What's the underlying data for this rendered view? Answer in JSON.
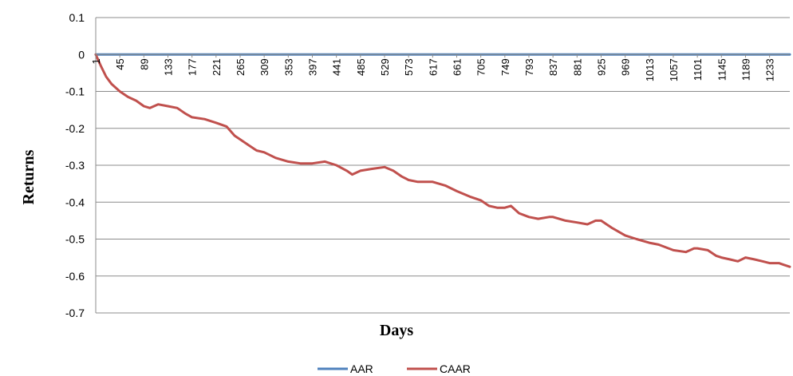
{
  "chart_data": {
    "type": "line",
    "title": "",
    "xlabel": "Days",
    "ylabel": "Returns",
    "ylim": [
      -0.7,
      0.1
    ],
    "xlim": [
      1,
      1270
    ],
    "yticks": [
      "0.1",
      "0",
      "-0.1",
      "-0.2",
      "-0.3",
      "-0.4",
      "-0.5",
      "-0.6",
      "-0.7"
    ],
    "xticks": [
      "1",
      "45",
      "89",
      "133",
      "177",
      "221",
      "265",
      "309",
      "353",
      "397",
      "441",
      "485",
      "529",
      "573",
      "617",
      "661",
      "705",
      "749",
      "793",
      "837",
      "881",
      "925",
      "969",
      "1013",
      "1057",
      "1101",
      "1145",
      "1189",
      "1233"
    ],
    "grid": "horizontal",
    "legend": "bottom-center",
    "series": [
      {
        "name": "AAR",
        "color": "#4f81bd",
        "points": [
          [
            1,
            0.0
          ],
          [
            1270,
            0.0
          ]
        ]
      },
      {
        "name": "CAAR",
        "color": "#c0504d",
        "points": [
          [
            1,
            0.0
          ],
          [
            10,
            -0.03
          ],
          [
            20,
            -0.06
          ],
          [
            30,
            -0.08
          ],
          [
            45,
            -0.1
          ],
          [
            60,
            -0.115
          ],
          [
            75,
            -0.125
          ],
          [
            89,
            -0.14
          ],
          [
            100,
            -0.145
          ],
          [
            115,
            -0.135
          ],
          [
            133,
            -0.14
          ],
          [
            150,
            -0.145
          ],
          [
            165,
            -0.16
          ],
          [
            177,
            -0.17
          ],
          [
            200,
            -0.175
          ],
          [
            221,
            -0.185
          ],
          [
            240,
            -0.195
          ],
          [
            255,
            -0.22
          ],
          [
            265,
            -0.23
          ],
          [
            280,
            -0.245
          ],
          [
            295,
            -0.26
          ],
          [
            309,
            -0.265
          ],
          [
            330,
            -0.28
          ],
          [
            353,
            -0.29
          ],
          [
            375,
            -0.295
          ],
          [
            397,
            -0.295
          ],
          [
            420,
            -0.29
          ],
          [
            441,
            -0.3
          ],
          [
            460,
            -0.315
          ],
          [
            470,
            -0.325
          ],
          [
            485,
            -0.315
          ],
          [
            505,
            -0.31
          ],
          [
            529,
            -0.305
          ],
          [
            545,
            -0.315
          ],
          [
            560,
            -0.33
          ],
          [
            573,
            -0.34
          ],
          [
            590,
            -0.345
          ],
          [
            617,
            -0.345
          ],
          [
            640,
            -0.355
          ],
          [
            661,
            -0.37
          ],
          [
            685,
            -0.385
          ],
          [
            705,
            -0.395
          ],
          [
            720,
            -0.41
          ],
          [
            735,
            -0.415
          ],
          [
            749,
            -0.415
          ],
          [
            760,
            -0.41
          ],
          [
            775,
            -0.43
          ],
          [
            793,
            -0.44
          ],
          [
            810,
            -0.445
          ],
          [
            830,
            -0.44
          ],
          [
            837,
            -0.44
          ],
          [
            860,
            -0.45
          ],
          [
            881,
            -0.455
          ],
          [
            900,
            -0.46
          ],
          [
            915,
            -0.45
          ],
          [
            925,
            -0.45
          ],
          [
            945,
            -0.47
          ],
          [
            969,
            -0.49
          ],
          [
            990,
            -0.5
          ],
          [
            1013,
            -0.51
          ],
          [
            1030,
            -0.515
          ],
          [
            1057,
            -0.53
          ],
          [
            1080,
            -0.535
          ],
          [
            1095,
            -0.525
          ],
          [
            1101,
            -0.525
          ],
          [
            1120,
            -0.53
          ],
          [
            1135,
            -0.545
          ],
          [
            1145,
            -0.55
          ],
          [
            1160,
            -0.555
          ],
          [
            1175,
            -0.56
          ],
          [
            1189,
            -0.55
          ],
          [
            1205,
            -0.555
          ],
          [
            1220,
            -0.56
          ],
          [
            1233,
            -0.565
          ],
          [
            1250,
            -0.565
          ],
          [
            1260,
            -0.57
          ],
          [
            1270,
            -0.575
          ]
        ]
      }
    ]
  }
}
